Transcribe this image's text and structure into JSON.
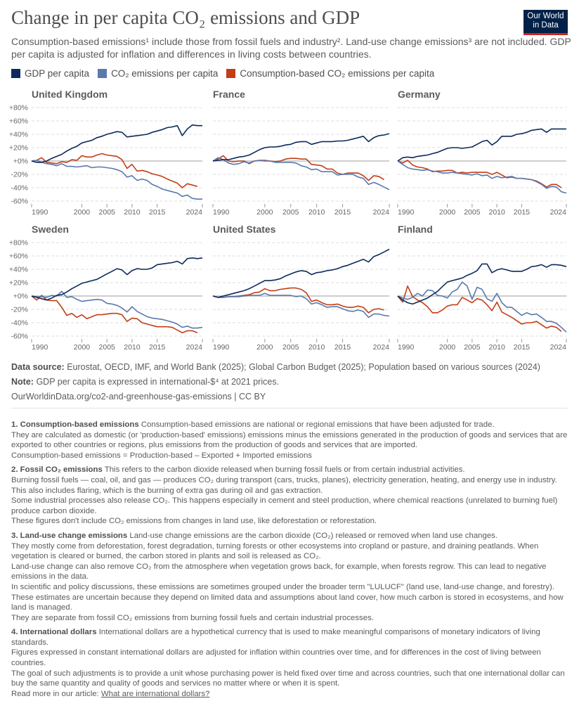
{
  "header": {
    "title": "Change in per capita CO₂ emissions and GDP",
    "subtitle": "Consumption-based emissions¹ include those from fossil fuels and industry². Land-use change emissions³ are not included. GDP per capita is adjusted for inflation and differences in living costs between countries.",
    "logo": "Our World in Data"
  },
  "chart_data": {
    "type": "line",
    "x": [
      1990,
      1991,
      1992,
      1993,
      1994,
      1995,
      1996,
      1997,
      1998,
      1999,
      2000,
      2001,
      2002,
      2003,
      2004,
      2005,
      2006,
      2007,
      2008,
      2009,
      2010,
      2011,
      2012,
      2013,
      2014,
      2015,
      2016,
      2017,
      2018,
      2019,
      2020,
      2021,
      2022,
      2023,
      2024
    ],
    "xticks": [
      "1990",
      "2000",
      "2005",
      "2010",
      "2015",
      "2024"
    ],
    "yticks": [
      "+80%",
      "+60%",
      "+40%",
      "+20%",
      "+0%",
      "-20%",
      "-40%",
      "-60%"
    ],
    "ylim": [
      -60,
      80
    ],
    "grid": true,
    "legend_position": "top",
    "series_names": [
      "GDP per capita",
      "CO₂ emissions per capita",
      "Consumption-based CO₂ emissions per capita"
    ],
    "colors": {
      "gdp": "#0c2a5b",
      "co2": "#5a79ad",
      "cons": "#c13e16"
    },
    "panels": [
      {
        "country": "United Kingdom",
        "gdp": [
          0,
          -2,
          -2,
          0,
          4,
          7,
          10,
          15,
          19,
          22,
          27,
          29,
          31,
          35,
          37,
          40,
          42,
          44,
          43,
          36,
          37,
          38,
          39,
          40,
          43,
          45,
          47,
          50,
          51,
          53,
          38,
          48,
          54,
          53,
          53
        ],
        "co2": [
          0,
          1,
          -2,
          -4,
          -5,
          -7,
          -4,
          -8,
          -8,
          -9,
          -8,
          -7,
          -10,
          -9,
          -9,
          -10,
          -11,
          -13,
          -16,
          -24,
          -22,
          -29,
          -27,
          -29,
          -35,
          -38,
          -42,
          -44,
          -46,
          -48,
          -53,
          -51,
          -56,
          -57,
          -57
        ],
        "cons": [
          0,
          1,
          5,
          -2,
          -3,
          -4,
          -1,
          -2,
          2,
          1,
          8,
          6,
          6,
          9,
          11,
          9,
          8,
          7,
          2,
          -11,
          -5,
          -15,
          -14,
          -16,
          -19,
          -21,
          -23,
          -27,
          -30,
          -33,
          -40,
          -34,
          -36,
          -38
        ]
      },
      {
        "country": "France",
        "gdp": [
          0,
          1,
          2,
          2,
          4,
          6,
          7,
          9,
          13,
          17,
          20,
          21,
          21,
          22,
          24,
          25,
          28,
          29,
          29,
          25,
          27,
          29,
          29,
          29,
          30,
          30,
          31,
          33,
          35,
          37,
          29,
          35,
          38,
          39,
          41
        ],
        "co2": [
          0,
          5,
          2,
          -3,
          -5,
          -4,
          -1,
          -3,
          0,
          1,
          0,
          0,
          -2,
          -2,
          -2,
          -2,
          -3,
          -7,
          -9,
          -13,
          -12,
          -16,
          -16,
          -16,
          -21,
          -20,
          -20,
          -20,
          -24,
          -26,
          -35,
          -32,
          -35,
          -39,
          -43
        ],
        "cons": [
          0,
          3,
          8,
          0,
          -1,
          0,
          0,
          -4,
          0,
          1,
          1,
          0,
          -1,
          0,
          3,
          4,
          4,
          3,
          3,
          -5,
          -6,
          -7,
          -12,
          -12,
          -18,
          -20,
          -18,
          -18,
          -18,
          -22,
          -29,
          -22,
          -23,
          -28
        ]
      },
      {
        "country": "Germany",
        "gdp": [
          0,
          5,
          6,
          5,
          7,
          8,
          9,
          11,
          13,
          16,
          19,
          20,
          20,
          19,
          20,
          21,
          25,
          29,
          31,
          24,
          29,
          37,
          37,
          37,
          40,
          41,
          43,
          46,
          47,
          48,
          43,
          48,
          48,
          48,
          48
        ],
        "co2": [
          0,
          -5,
          -10,
          -12,
          -13,
          -14,
          -13,
          -15,
          -16,
          -18,
          -18,
          -17,
          -18,
          -19,
          -20,
          -21,
          -19,
          -22,
          -21,
          -26,
          -23,
          -25,
          -24,
          -23,
          -26,
          -26,
          -27,
          -28,
          -31,
          -35,
          -41,
          -38,
          -39,
          -46,
          -48
        ],
        "cons": [
          0,
          -3,
          1,
          -6,
          -9,
          -10,
          -12,
          -16,
          -15,
          -15,
          -14,
          -14,
          -18,
          -17,
          -18,
          -17,
          -17,
          -17,
          -17,
          -20,
          -17,
          -21,
          -25,
          -24,
          -26,
          -26,
          -27,
          -28,
          -30,
          -34,
          -39,
          -35,
          -35,
          -40
        ]
      },
      {
        "country": "Sweden",
        "gdp": [
          0,
          -2,
          -4,
          -6,
          -3,
          1,
          2,
          6,
          11,
          15,
          19,
          21,
          23,
          25,
          29,
          33,
          37,
          41,
          39,
          32,
          38,
          41,
          40,
          40,
          42,
          47,
          48,
          49,
          50,
          52,
          48,
          56,
          57,
          56,
          57
        ],
        "co2": [
          0,
          -1,
          -1,
          -2,
          1,
          0,
          7,
          -2,
          -1,
          -5,
          -8,
          -7,
          -6,
          -5,
          -6,
          -11,
          -12,
          -14,
          -18,
          -24,
          -16,
          -23,
          -27,
          -31,
          -33,
          -34,
          -35,
          -37,
          -39,
          -42,
          -47,
          -45,
          -48,
          -48,
          -47
        ],
        "cons": [
          0,
          -6,
          1,
          -6,
          -7,
          -7,
          -17,
          -29,
          -26,
          -32,
          -28,
          -34,
          -31,
          -28,
          -28,
          -27,
          -26,
          -26,
          -28,
          -38,
          -33,
          -34,
          -40,
          -42,
          -44,
          -46,
          -46,
          -46,
          -47,
          -51,
          -55,
          -52,
          -52,
          -55
        ]
      },
      {
        "country": "United States",
        "gdp": [
          0,
          -2,
          0,
          2,
          4,
          6,
          8,
          11,
          15,
          19,
          23,
          23,
          24,
          26,
          30,
          33,
          36,
          38,
          37,
          32,
          35,
          36,
          38,
          39,
          41,
          44,
          46,
          49,
          52,
          55,
          51,
          59,
          62,
          66,
          70
        ],
        "co2": [
          0,
          -2,
          -2,
          -1,
          -1,
          -1,
          0,
          1,
          1,
          1,
          4,
          1,
          1,
          1,
          1,
          1,
          -1,
          0,
          -4,
          -12,
          -10,
          -13,
          -17,
          -16,
          -16,
          -19,
          -22,
          -23,
          -21,
          -23,
          -32,
          -27,
          -27,
          -29,
          -30
        ],
        "cons": [
          0,
          -2,
          -2,
          -1,
          -1,
          0,
          1,
          2,
          5,
          6,
          11,
          8,
          8,
          10,
          11,
          12,
          12,
          10,
          5,
          -8,
          -6,
          -10,
          -13,
          -13,
          -12,
          -15,
          -17,
          -17,
          -15,
          -17,
          -25,
          -20,
          -19,
          -21
        ]
      },
      {
        "country": "Finland",
        "gdp": [
          0,
          -6,
          -10,
          -12,
          -9,
          -6,
          -3,
          2,
          7,
          14,
          21,
          23,
          25,
          27,
          31,
          34,
          38,
          48,
          48,
          35,
          39,
          41,
          39,
          37,
          37,
          37,
          40,
          44,
          45,
          47,
          43,
          47,
          47,
          46,
          44
        ],
        "co2": [
          0,
          -3,
          -5,
          -2,
          4,
          0,
          9,
          8,
          1,
          0,
          -3,
          6,
          10,
          21,
          15,
          -5,
          13,
          10,
          -4,
          -8,
          4,
          -10,
          -17,
          -17,
          -23,
          -29,
          -25,
          -28,
          -27,
          -32,
          -38,
          -38,
          -41,
          -47,
          -54
        ],
        "cons": [
          0,
          -9,
          15,
          -1,
          -6,
          -10,
          -16,
          -25,
          -25,
          -21,
          -15,
          -13,
          -13,
          -2,
          -6,
          -10,
          -4,
          -6,
          -13,
          -22,
          -9,
          -24,
          -28,
          -32,
          -37,
          -42,
          -40,
          -40,
          -38,
          -43,
          -48,
          -45,
          -47,
          -53
        ]
      }
    ]
  },
  "footer": {
    "source_label": "Data source:",
    "source_text": "Eurostat, OECD, IMF, and World Bank (2025); Global Carbon Budget (2025); Population based on various sources (2024)",
    "note_label": "Note:",
    "note_text": "GDP per capita is expressed in international-$⁴ at 2021 prices.",
    "url": "OurWorldinData.org/co2-and-greenhouse-gas-emissions | CC BY"
  },
  "notes": [
    {
      "head": "1. Consumption-based emissions",
      "lines": [
        "Consumption-based emissions are national or regional emissions that have been adjusted for trade.",
        "They are calculated as domestic (or 'production-based' emissions) emissions minus the emissions generated in the production of goods and services that are exported to other countries or regions, plus emissions from the production of goods and services that are imported.",
        "Consumption-based emissions = Production-based – Exported + Imported emissions"
      ]
    },
    {
      "head": "2. Fossil CO₂ emissions",
      "lines": [
        "This refers to the carbon dioxide released when burning fossil fuels or from certain industrial activities.",
        "Burning fossil fuels — coal, oil, and gas — produces CO₂ during transport (cars, trucks, planes), electricity generation, heating, and energy use in industry. This also includes flaring, which is the burning of extra gas during oil and gas extraction.",
        "Some industrial processes also release CO₂. This happens especially in cement and steel production, where chemical reactions (unrelated to burning fuel) produce carbon dioxide.",
        "These figures don't include CO₂ emissions from changes in land use, like deforestation or reforestation."
      ]
    },
    {
      "head": "3. Land-use change emissions",
      "lines": [
        "Land-use change emissions are the carbon dioxide (CO₂) released or removed when land use changes.",
        "They mostly come from deforestation, forest degradation, turning forests or other ecosystems into cropland or pasture, and draining peatlands. When vegetation is cleared or burned, the carbon stored in plants and soil is released as CO₂.",
        "Land-use change can also remove CO₂ from the atmosphere when vegetation grows back, for example, when forests regrow. This can lead to negative emissions in the data.",
        "In scientific and policy discussions, these emissions are sometimes grouped under the broader term \"LULUCF\" (land use, land-use change, and forestry).",
        "These estimates are uncertain because they depend on limited data and assumptions about land cover, how much carbon is stored in ecosystems, and how land is managed.",
        "They are separate from fossil CO₂ emissions from burning fossil fuels and certain industrial processes."
      ]
    },
    {
      "head": "4. International dollars",
      "lines": [
        "International dollars are a hypothetical currency that is used to make meaningful comparisons of monetary indicators of living standards.",
        "Figures expressed in constant international dollars are adjusted for inflation within countries over time, and for differences in the cost of living between countries.",
        "The goal of such adjustments is to provide a unit whose purchasing power is held fixed over time and across countries, such that one international dollar can buy the same quantity and quality of goods and services no matter where or when it is spent."
      ]
    }
  ],
  "read_more": {
    "prefix": "Read more in our article: ",
    "link": "What are international dollars?"
  }
}
